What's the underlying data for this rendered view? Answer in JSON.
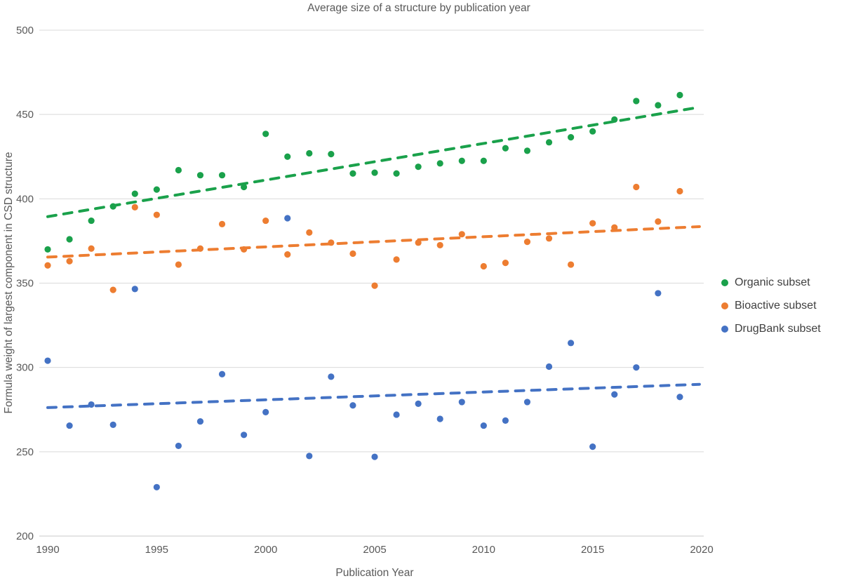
{
  "chart_data": {
    "type": "scatter",
    "title": "Average size of a structure by publication year",
    "xlabel": "Publication Year",
    "ylabel": "Formula weight of largest component in CSD structure",
    "xlim": [
      1990,
      2020
    ],
    "ylim": [
      200,
      500
    ],
    "x_ticks": [
      1990,
      1995,
      2000,
      2005,
      2010,
      2015,
      2020
    ],
    "y_ticks": [
      200,
      250,
      300,
      350,
      400,
      450,
      500
    ],
    "grid": "horizontal",
    "legend_position": "right",
    "trendline_style": "dashed",
    "x": [
      1990,
      1991,
      1992,
      1993,
      1994,
      1995,
      1996,
      1997,
      1998,
      1999,
      2000,
      2001,
      2002,
      2003,
      2004,
      2005,
      2006,
      2007,
      2008,
      2009,
      2010,
      2011,
      2012,
      2013,
      2014,
      2015,
      2016,
      2017,
      2018,
      2019
    ],
    "series": [
      {
        "name": "Organic subset",
        "color": "#1aa14b",
        "trendline": true,
        "values": [
          370,
          376,
          387,
          395.5,
          403,
          405.5,
          417,
          414,
          414,
          407,
          438.5,
          425,
          427,
          426.5,
          415,
          415.5,
          415,
          419,
          421,
          422.5,
          422.5,
          430,
          428.5,
          433.5,
          436.5,
          440,
          447,
          458,
          455.5,
          461.5
        ]
      },
      {
        "name": "Bioactive subset",
        "color": "#ed7d31",
        "trendline": true,
        "values": [
          360.5,
          363,
          370.5,
          346,
          395,
          390.5,
          361,
          370.5,
          385,
          370,
          387,
          367,
          380,
          374,
          367.5,
          348.5,
          364,
          374,
          372.5,
          379,
          360,
          362,
          374.5,
          376.5,
          361,
          385.5,
          383,
          407,
          386.5,
          404.5
        ]
      },
      {
        "name": "DrugBank subset",
        "color": "#4472c4",
        "trendline": true,
        "values": [
          304,
          265.5,
          278,
          266,
          346.5,
          229,
          253.5,
          268,
          296,
          260,
          273.5,
          388.5,
          247.5,
          294.5,
          277.5,
          247,
          272,
          278.5,
          269.5,
          279.5,
          265.5,
          268.5,
          279.5,
          300.5,
          314.5,
          253,
          284,
          300,
          344,
          282.5
        ]
      }
    ]
  },
  "colors": {
    "grid": "#d9d9d9",
    "baseline": "#c8c8c8",
    "axis_text": "#595959",
    "title_text": "#595959",
    "legend_text": "#404040"
  }
}
